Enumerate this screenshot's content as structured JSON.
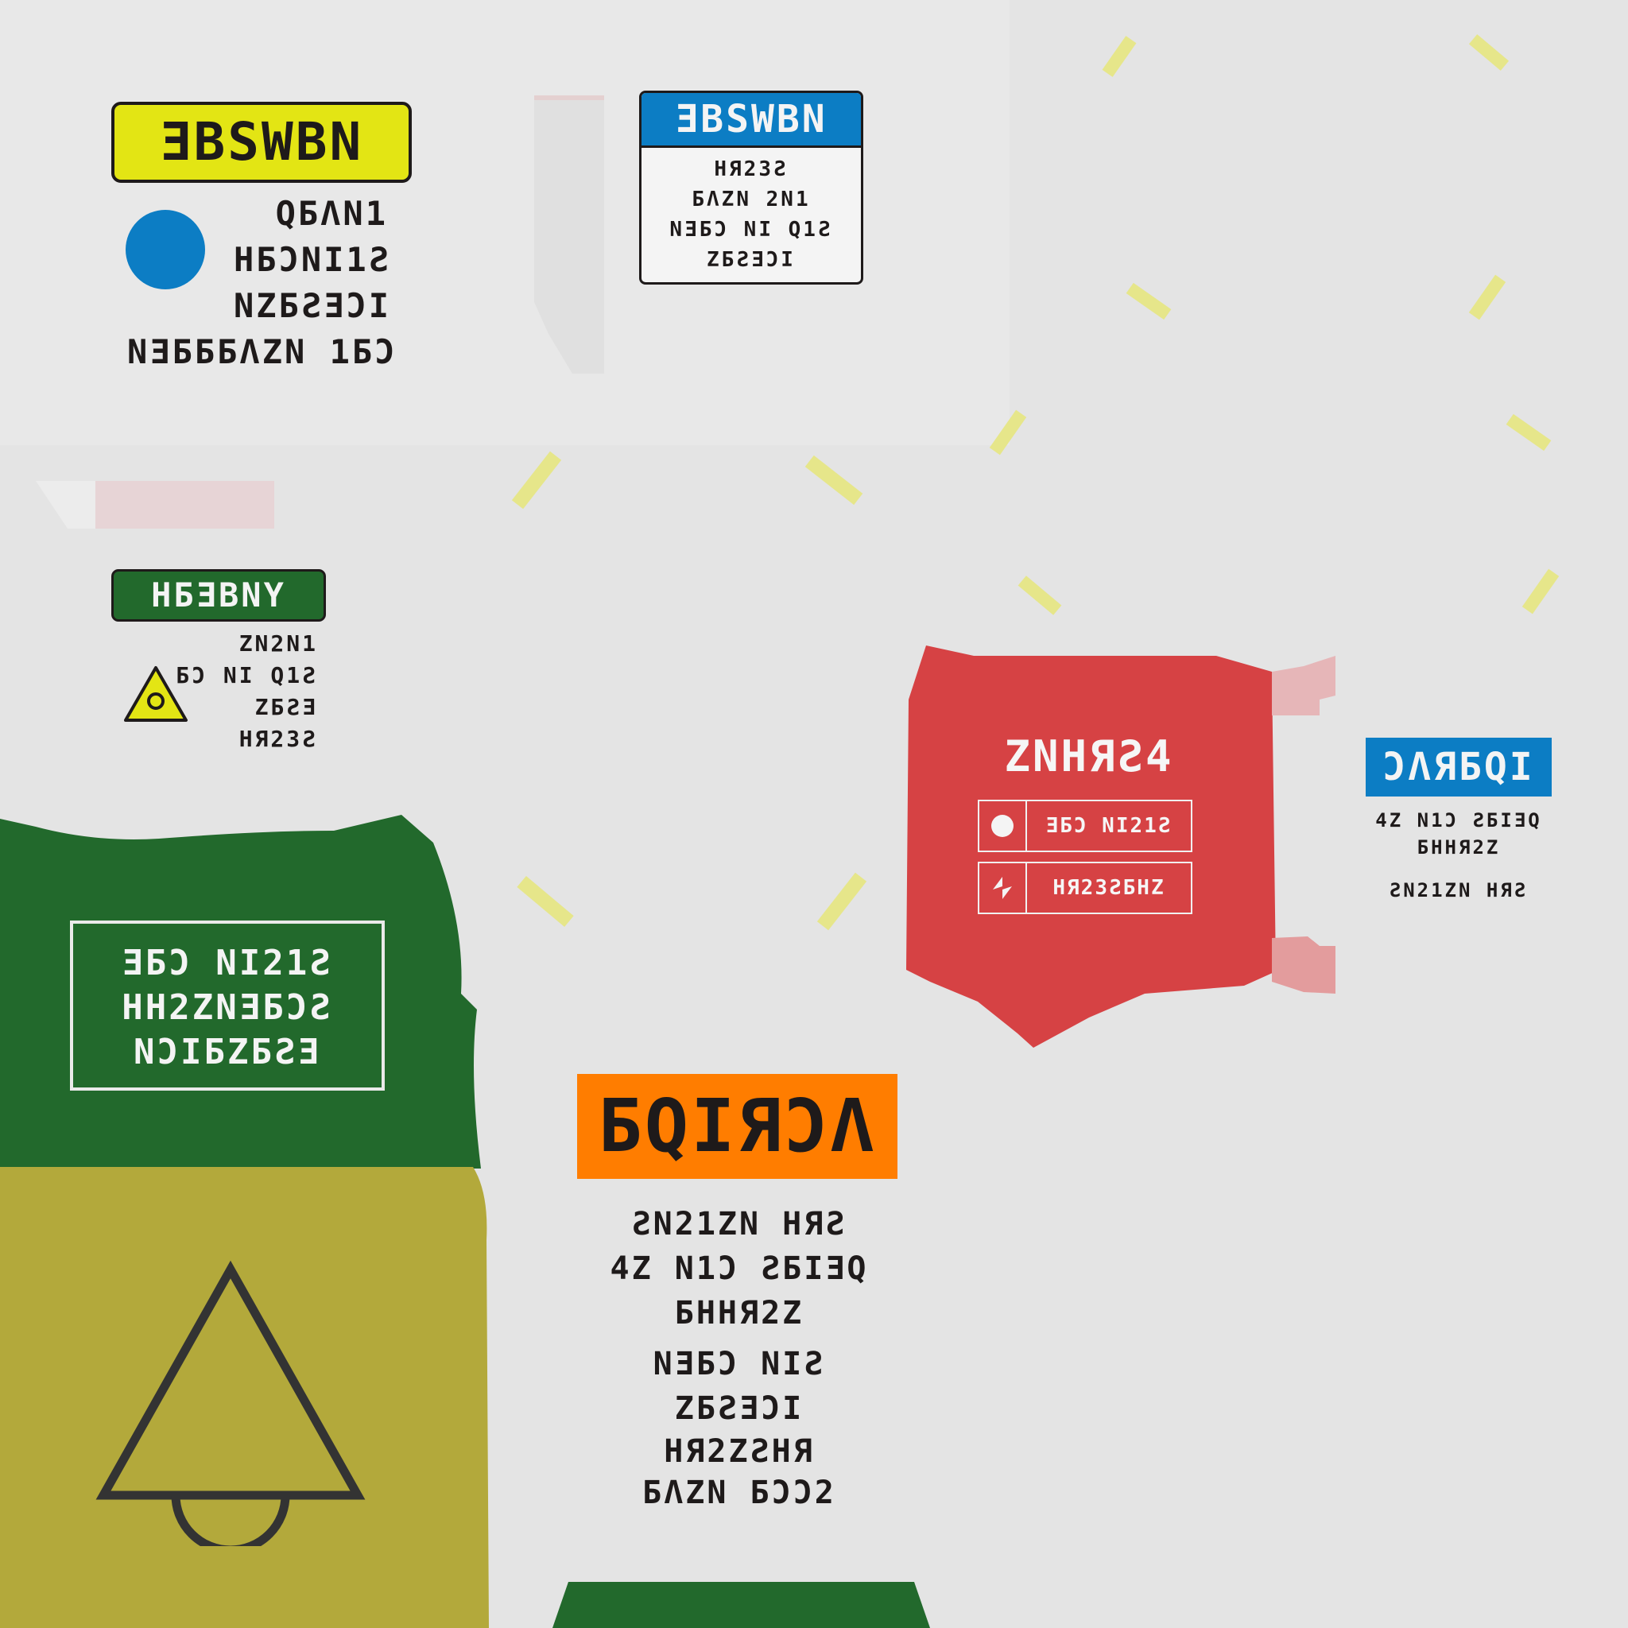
{
  "colors": {
    "background": "#e4e4e4",
    "yellow": "#e3e514",
    "blue": "#0c7dc4",
    "green": "#22692c",
    "olive": "#b3a93b",
    "red": "#d64244",
    "orange": "#ff7d00",
    "ink": "#1e1a1a",
    "stripe": "#e6e68a"
  },
  "label_yellow": {
    "title": "ƎBSWBN",
    "lines": [
      "QБΛΝ1",
      "ΗБƆΝΙ1Ƨ",
      "ΝΖБƧƎƆΙ",
      "ΝƎБББΛΖΝ 1БƆ"
    ],
    "icon": "blue-circle-icon"
  },
  "label_blue": {
    "title": "ƎBSWBN",
    "lines": [
      "ΗЯ23Ƨ",
      "БΛΖΝ 2Ν1",
      "ΝƎБƆ ΝΙ Q1Ƨ",
      "ΖБƧƎƆΙ"
    ]
  },
  "label_green_small": {
    "title": "ΗБƎBΝΥ",
    "lines": [
      "ΖΝ2Ν1",
      "БƆ ΝΙ Q1Ƨ",
      "ΖБƧƎ",
      "ΗЯ23Ƨ"
    ],
    "icon": "warning-triangle-icon"
  },
  "label_green_box": {
    "lines": [
      "ƎБƆ ΝΙ21Ƨ",
      "ΗΗ2ΖΝƎБƆƧ",
      "ΝƆΙБΖБƧƎ"
    ]
  },
  "label_red": {
    "title": "ΖΝΗЯƧ4",
    "rows": [
      {
        "icon": "dot-circle-icon",
        "text": "ƎБƆ ΝΙ21Ƨ"
      },
      {
        "icon": "rotate-arrow-icon",
        "text": "ΗЯ23ƧБΗΖ"
      }
    ]
  },
  "label_blue_small": {
    "title": "ƆΛЯБQΙ",
    "lines": [
      "4Ζ Ν1Ɔ ƧБΙƎQ",
      "БΗΗЯ2Ζ",
      "ƧΝ21ΖΝ ΗЯƧ"
    ]
  },
  "label_orange": {
    "title": "БQΙЯƆΛ",
    "lines": [
      "ƧΝ21ΖΝ ΗЯƧ",
      "4Ζ Ν1Ɔ ƧБΙƎQ",
      "БΗΗЯ2Ζ",
      "ΝƎБƆ ΝΙƧ",
      "ΖБƧƎƆΙ",
      "ΗЯ2ΖƧΗЯ",
      "БΛΖΝ БƆƆ2"
    ]
  },
  "label_olive": {
    "icon": "bell-triangle-icon"
  }
}
